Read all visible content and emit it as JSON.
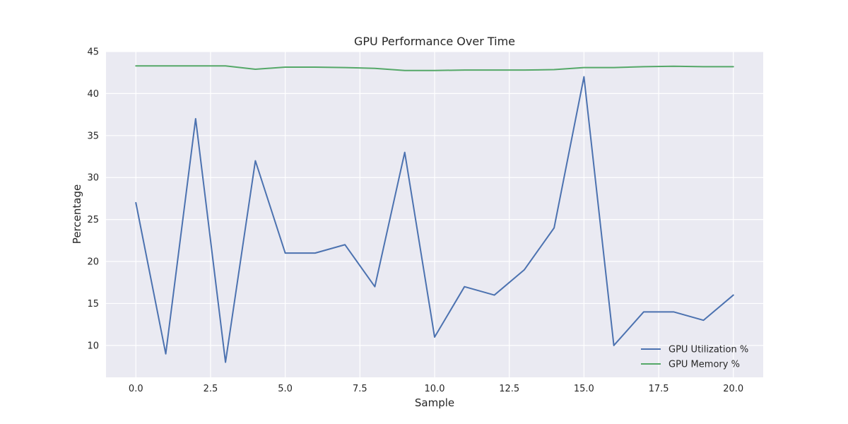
{
  "chart_data": {
    "type": "line",
    "title": "GPU Performance Over Time",
    "xlabel": "Sample",
    "ylabel": "Percentage",
    "x": [
      0,
      1,
      2,
      3,
      4,
      5,
      6,
      7,
      8,
      9,
      10,
      11,
      12,
      13,
      14,
      15,
      16,
      17,
      18,
      19,
      20
    ],
    "xlim": [
      -1,
      21
    ],
    "ylim": [
      6.2,
      45
    ],
    "xticks": [
      0.0,
      2.5,
      5.0,
      7.5,
      10.0,
      12.5,
      15.0,
      17.5,
      20.0
    ],
    "xtick_labels": [
      "0.0",
      "2.5",
      "5.0",
      "7.5",
      "10.0",
      "12.5",
      "15.0",
      "17.5",
      "20.0"
    ],
    "yticks": [
      10,
      15,
      20,
      25,
      30,
      35,
      40,
      45
    ],
    "ytick_labels": [
      "10",
      "15",
      "20",
      "25",
      "30",
      "35",
      "40",
      "45"
    ],
    "grid": true,
    "legend_position": "bottom-right",
    "background": "#eaeaf2",
    "grid_color": "#ffffff",
    "series": [
      {
        "name": "GPU Utilization %",
        "color": "#4c72b0",
        "values": [
          27,
          9,
          37,
          8,
          32,
          21,
          21,
          22,
          17,
          33,
          11,
          17,
          16,
          19,
          24,
          42,
          10,
          14,
          14,
          13,
          16
        ]
      },
      {
        "name": "GPU Memory %",
        "color": "#55a868",
        "values": [
          43.3,
          43.3,
          43.3,
          43.3,
          42.9,
          43.15,
          43.15,
          43.1,
          43.0,
          42.75,
          42.75,
          42.8,
          42.8,
          42.8,
          42.85,
          43.1,
          43.1,
          43.2,
          43.25,
          43.2,
          43.2
        ]
      }
    ]
  }
}
